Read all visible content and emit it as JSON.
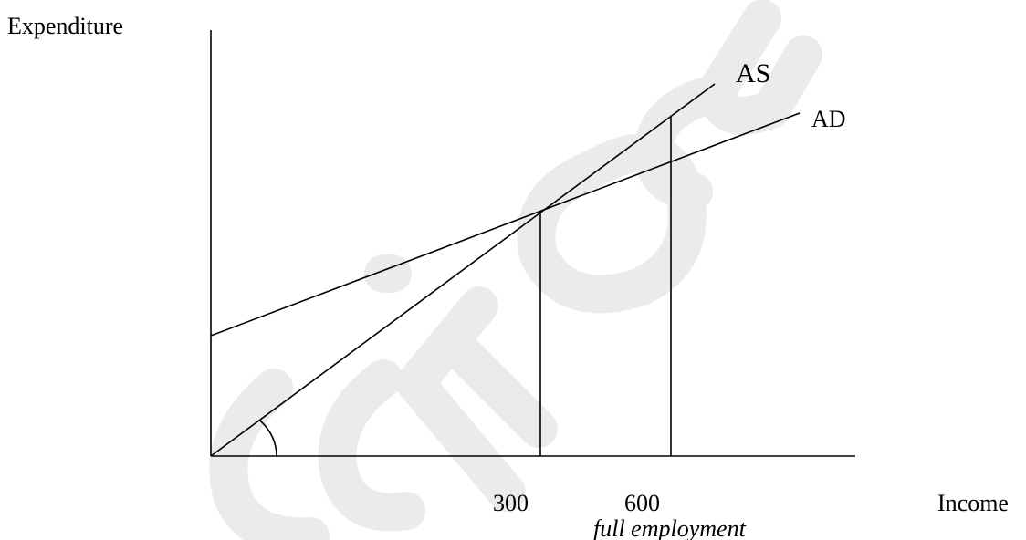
{
  "labels": {
    "y_axis": "Expenditure",
    "x_axis": "Income",
    "as_curve": "AS",
    "ad_curve": "AD",
    "tick_300": "300",
    "tick_600": "600",
    "full_employment": "full employment"
  },
  "watermark": {
    "color": "#ebebeb"
  },
  "line_color": "#000000"
}
